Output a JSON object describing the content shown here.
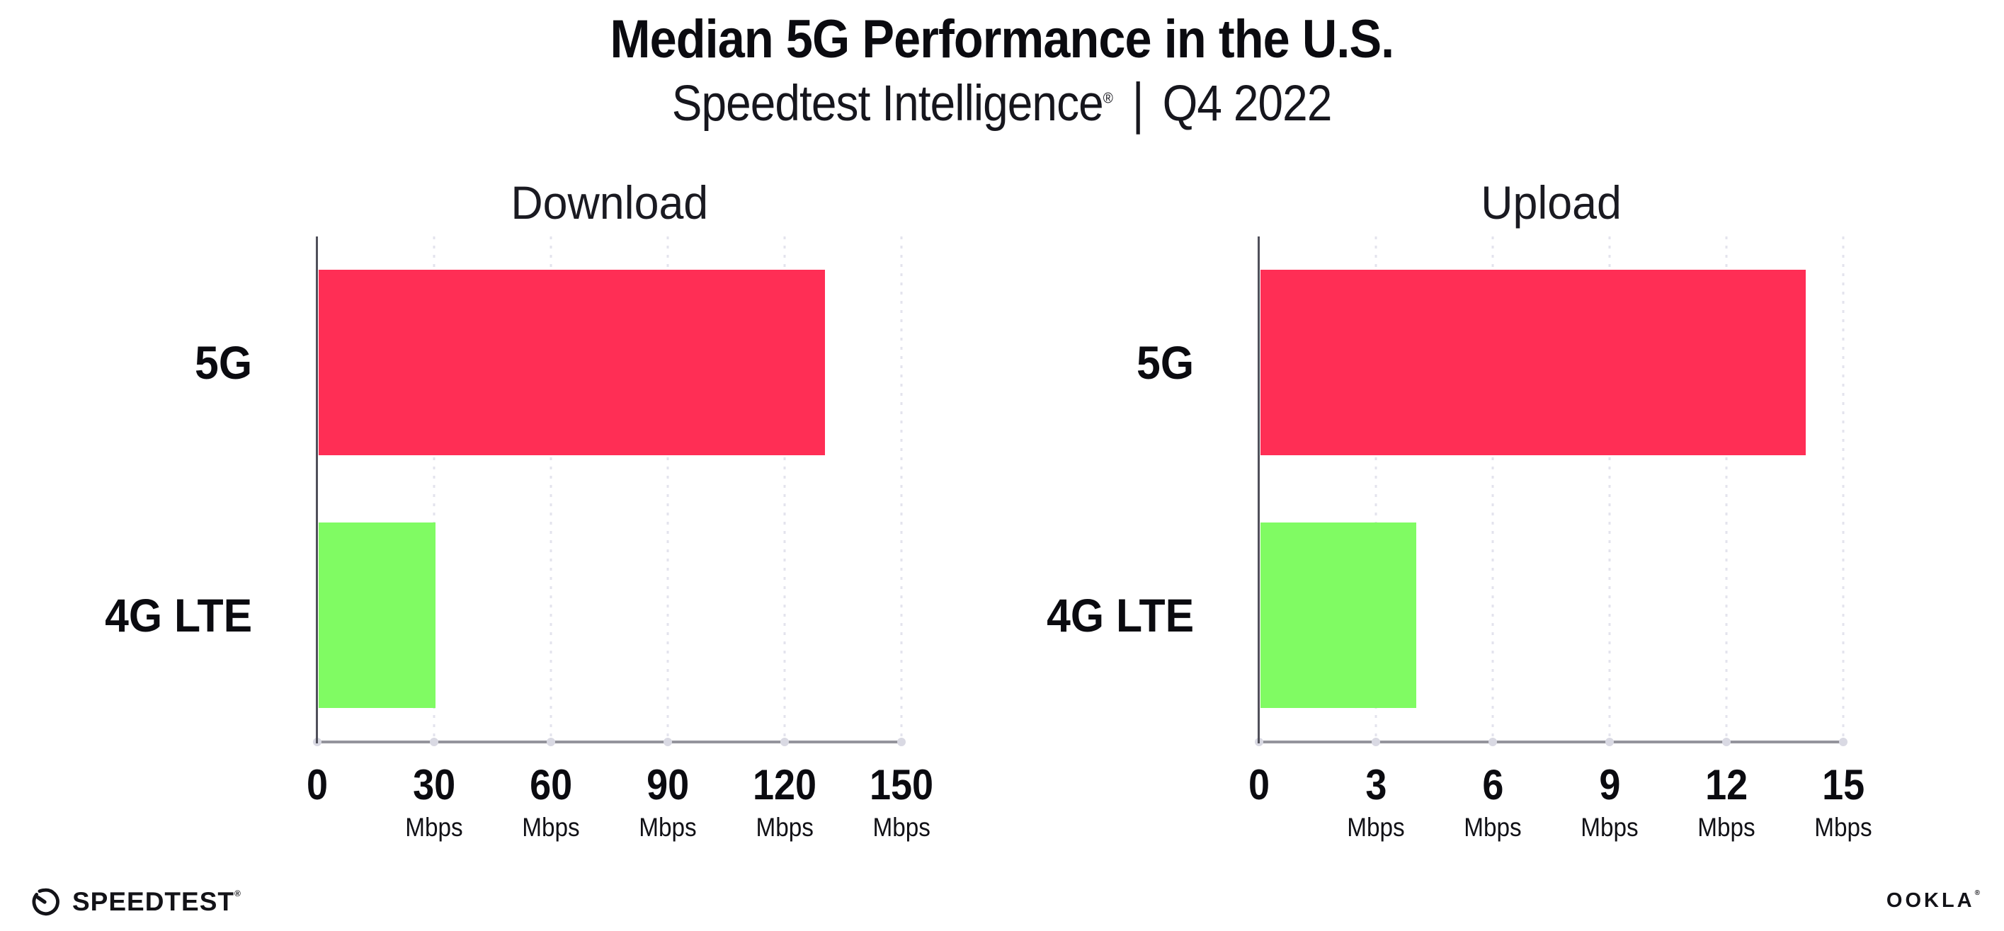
{
  "title": "Median 5G Performance in the U.S.",
  "subtitle": {
    "brand": "Speedtest Intelligence",
    "registered": "®",
    "separator": "|",
    "period": "Q4 2022"
  },
  "footer": {
    "speedtest_label": "SPEEDTEST",
    "speedtest_registered": "®",
    "speedtest_icon": "gauge-icon",
    "ookla_label": "OOKLA",
    "ookla_registered": "®"
  },
  "colors": {
    "bar_5g": "#FF2E55",
    "bar_4g_lte": "#80FB63",
    "gridline": "#E3E3ED",
    "x_axis_line": "#94949C",
    "y_axis_line": "#50505A",
    "text": "#0B0B10"
  },
  "chart_data": [
    {
      "type": "bar",
      "orientation": "horizontal",
      "title": "Download",
      "categories": [
        "5G",
        "4G LTE"
      ],
      "values": [
        130,
        30
      ],
      "unit": "Mbps",
      "xlim": [
        0,
        150
      ],
      "xticks": [
        0,
        30,
        60,
        90,
        120,
        150
      ],
      "grid": "vertical-dotted",
      "legend": "none",
      "bar_colors": [
        "#FF2E55",
        "#80FB63"
      ]
    },
    {
      "type": "bar",
      "orientation": "horizontal",
      "title": "Upload",
      "categories": [
        "5G",
        "4G LTE"
      ],
      "values": [
        14,
        4
      ],
      "unit": "Mbps",
      "xlim": [
        0,
        15
      ],
      "xticks": [
        0,
        3,
        6,
        9,
        12,
        15
      ],
      "grid": "vertical-dotted",
      "legend": "none",
      "bar_colors": [
        "#FF2E55",
        "#80FB63"
      ]
    }
  ]
}
